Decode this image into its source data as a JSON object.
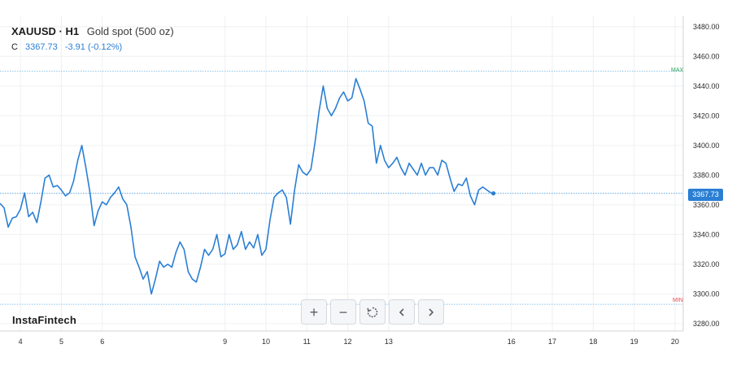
{
  "header": {
    "symbol": "XAUUSD · H1",
    "description": "Gold spot (500 oz)",
    "close_label": "C",
    "close_value": "3367.73",
    "change": "-3.91 (-0.12%)"
  },
  "brand": "InstaFintech",
  "markers": {
    "max_label": "MAX",
    "min_label": "MIN",
    "price_tag": "3367.73"
  },
  "toolbar": {
    "zoom_in": "+",
    "zoom_out": "−",
    "reset": "reset-icon",
    "back": "chevron-left-icon",
    "forward": "chevron-right-icon"
  },
  "colors": {
    "line": "#2a7fd4",
    "max": "#2fa35a",
    "min": "#e34c4c",
    "grid": "#eef0f3"
  },
  "chart_data": {
    "type": "line",
    "xlabel": "",
    "ylabel": "",
    "x_ticks": [
      4,
      5,
      6,
      9,
      10,
      11,
      12,
      13,
      16,
      17,
      18,
      19,
      20
    ],
    "x_tick_labels": [
      "4",
      "5",
      "6",
      "9",
      "10",
      "11",
      "12",
      "13",
      "16",
      "17",
      "18",
      "19",
      "20"
    ],
    "y_ticks": [
      3280,
      3300,
      3320,
      3340,
      3360,
      3380,
      3400,
      3420,
      3440,
      3460,
      3480
    ],
    "y_tick_labels": [
      "3280.00",
      "3300.00",
      "3320.00",
      "3340.00",
      "3360.00",
      "3380.00",
      "3400.00",
      "3420.00",
      "3440.00",
      "3460.00",
      "3480.00"
    ],
    "ylim": [
      3275,
      3487
    ],
    "max_line": 3450,
    "min_line": 3293,
    "last_price": 3367.73,
    "grid": true,
    "series": [
      {
        "values": [
          [
            3.5,
            3361
          ],
          [
            3.6,
            3358
          ],
          [
            3.7,
            3345
          ],
          [
            3.8,
            3351
          ],
          [
            3.9,
            3352
          ],
          [
            4.0,
            3357
          ],
          [
            4.1,
            3368
          ],
          [
            4.2,
            3352
          ],
          [
            4.3,
            3355
          ],
          [
            4.4,
            3348
          ],
          [
            4.5,
            3362
          ],
          [
            4.6,
            3378
          ],
          [
            4.7,
            3380
          ],
          [
            4.8,
            3372
          ],
          [
            4.9,
            3373
          ],
          [
            5.0,
            3370
          ],
          [
            5.1,
            3366
          ],
          [
            5.2,
            3368
          ],
          [
            5.3,
            3376
          ],
          [
            5.4,
            3390
          ],
          [
            5.5,
            3400
          ],
          [
            5.6,
            3385
          ],
          [
            5.7,
            3368
          ],
          [
            5.8,
            3346
          ],
          [
            5.9,
            3356
          ],
          [
            6.0,
            3362
          ],
          [
            6.1,
            3360
          ],
          [
            6.2,
            3365
          ],
          [
            6.3,
            3368
          ],
          [
            6.4,
            3372
          ],
          [
            6.5,
            3364
          ],
          [
            6.6,
            3360
          ],
          [
            6.7,
            3345
          ],
          [
            6.8,
            3325
          ],
          [
            6.9,
            3318
          ],
          [
            7.0,
            3310
          ],
          [
            7.1,
            3315
          ],
          [
            7.2,
            3300
          ],
          [
            7.3,
            3310
          ],
          [
            7.4,
            3322
          ],
          [
            7.5,
            3318
          ],
          [
            7.6,
            3320
          ],
          [
            7.7,
            3318
          ],
          [
            7.8,
            3328
          ],
          [
            7.9,
            3335
          ],
          [
            8.0,
            3330
          ],
          [
            8.1,
            3315
          ],
          [
            8.2,
            3310
          ],
          [
            8.3,
            3308
          ],
          [
            8.4,
            3318
          ],
          [
            8.5,
            3330
          ],
          [
            8.6,
            3326
          ],
          [
            8.7,
            3330
          ],
          [
            8.8,
            3340
          ],
          [
            8.9,
            3325
          ],
          [
            9.0,
            3327
          ],
          [
            9.1,
            3340
          ],
          [
            9.2,
            3330
          ],
          [
            9.3,
            3333
          ],
          [
            9.4,
            3342
          ],
          [
            9.5,
            3330
          ],
          [
            9.6,
            3335
          ],
          [
            9.7,
            3331
          ],
          [
            9.8,
            3340
          ],
          [
            9.9,
            3326
          ],
          [
            10.0,
            3330
          ],
          [
            10.1,
            3350
          ],
          [
            10.2,
            3365
          ],
          [
            10.3,
            3368
          ],
          [
            10.4,
            3370
          ],
          [
            10.5,
            3365
          ],
          [
            10.6,
            3347
          ],
          [
            10.7,
            3370
          ],
          [
            10.8,
            3387
          ],
          [
            10.9,
            3382
          ],
          [
            11.0,
            3380
          ],
          [
            11.1,
            3384
          ],
          [
            11.2,
            3402
          ],
          [
            11.3,
            3423
          ],
          [
            11.4,
            3440
          ],
          [
            11.5,
            3425
          ],
          [
            11.6,
            3420
          ],
          [
            11.7,
            3425
          ],
          [
            11.8,
            3432
          ],
          [
            11.9,
            3436
          ],
          [
            12.0,
            3430
          ],
          [
            12.1,
            3432
          ],
          [
            12.2,
            3445
          ],
          [
            12.3,
            3438
          ],
          [
            12.4,
            3430
          ],
          [
            12.5,
            3415
          ],
          [
            12.6,
            3413
          ],
          [
            12.7,
            3388
          ],
          [
            12.8,
            3400
          ],
          [
            12.9,
            3390
          ],
          [
            13.0,
            3385
          ],
          [
            13.1,
            3388
          ],
          [
            13.2,
            3392
          ],
          [
            13.3,
            3385
          ],
          [
            13.4,
            3380
          ],
          [
            13.5,
            3388
          ],
          [
            13.6,
            3384
          ],
          [
            13.7,
            3380
          ],
          [
            13.8,
            3388
          ],
          [
            13.9,
            3380
          ],
          [
            14.0,
            3385
          ],
          [
            14.1,
            3385
          ],
          [
            14.2,
            3380
          ],
          [
            14.3,
            3390
          ],
          [
            14.4,
            3388
          ],
          [
            14.5,
            3378
          ],
          [
            14.6,
            3369
          ],
          [
            14.7,
            3374
          ],
          [
            14.8,
            3373
          ],
          [
            14.9,
            3378
          ],
          [
            15.0,
            3366
          ],
          [
            15.1,
            3360
          ],
          [
            15.2,
            3370
          ],
          [
            15.3,
            3372
          ],
          [
            15.4,
            3370
          ],
          [
            15.5,
            3368
          ]
        ]
      }
    ]
  }
}
